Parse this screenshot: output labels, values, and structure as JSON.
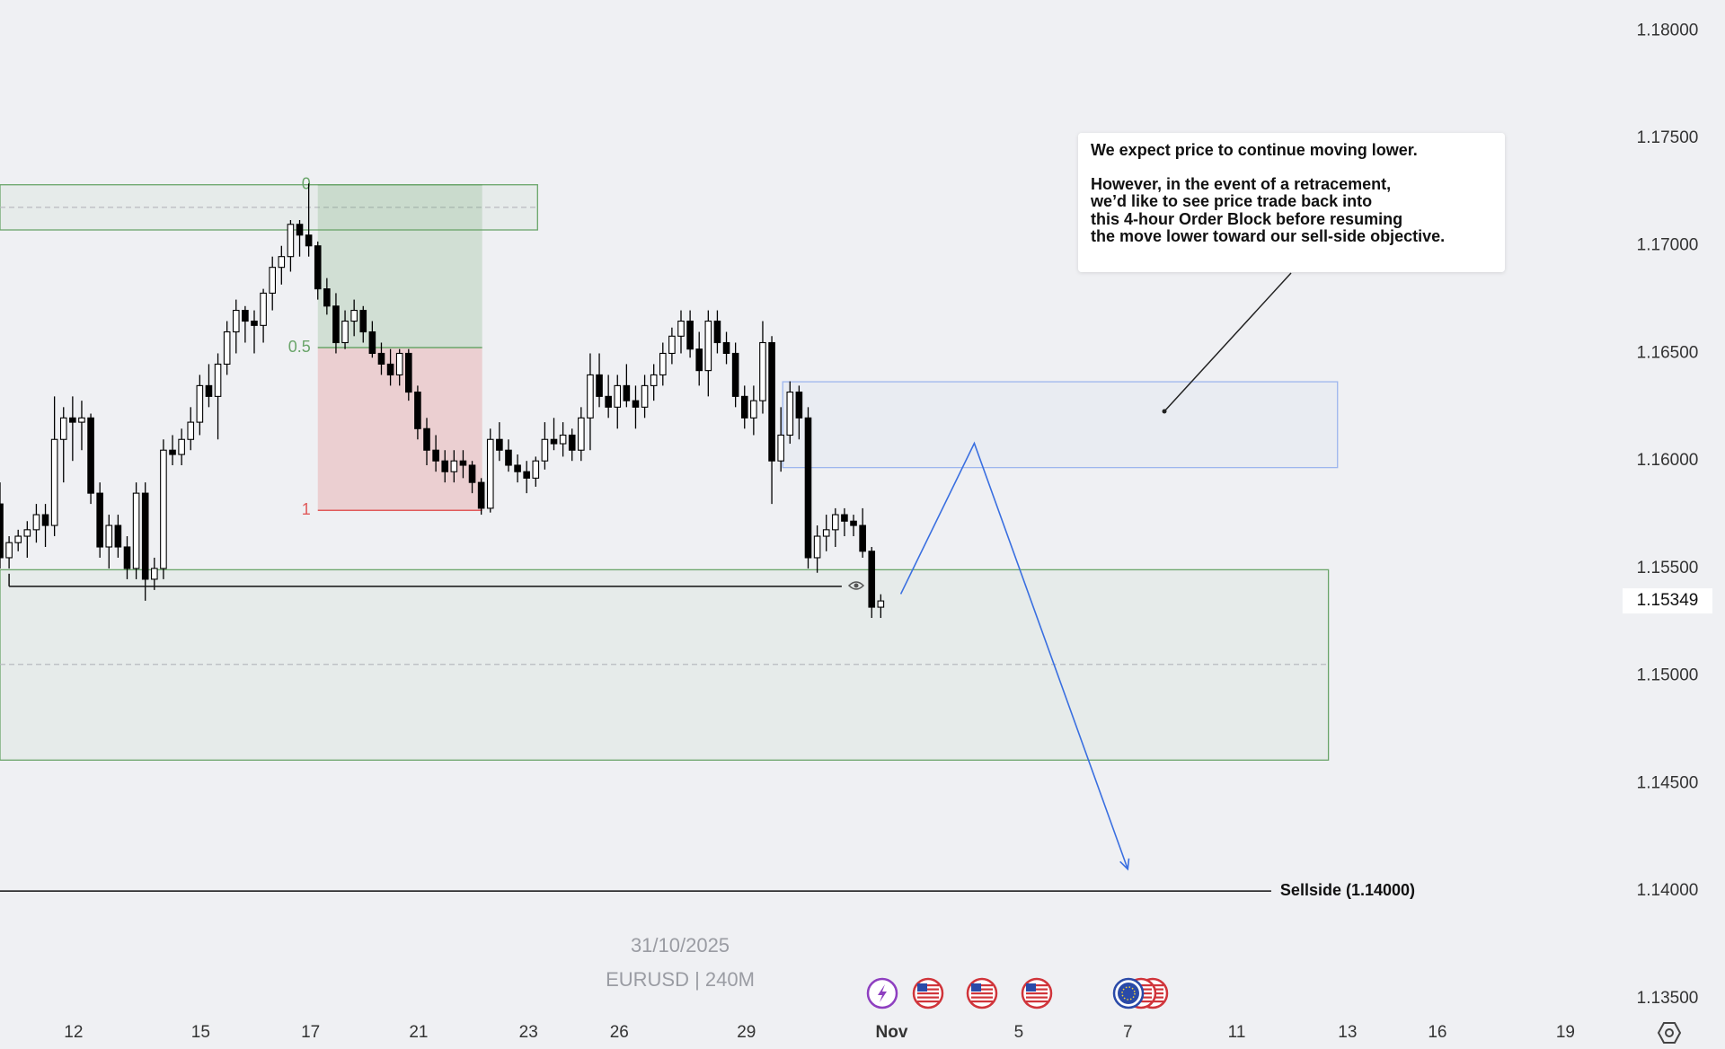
{
  "chart_data": {
    "type": "candlestick",
    "symbol": "EURUSD | 240M",
    "date": "31/10/2025",
    "open": [
      1.158,
      1.1555,
      1.1562,
      1.1565,
      1.1568,
      1.1575,
      1.157,
      1.161,
      1.162,
      1.1618,
      1.162,
      1.1585,
      1.156,
      1.157,
      1.156,
      1.155,
      1.1585,
      1.1545,
      1.155,
      1.1605,
      1.1603,
      1.161,
      1.1618,
      1.1635,
      1.163,
      1.1645,
      1.166,
      1.167,
      1.1665,
      1.1663,
      1.1678,
      1.169,
      1.1695,
      1.171,
      1.1705,
      1.17,
      1.168,
      1.1672,
      1.1655,
      1.1665,
      1.167,
      1.166,
      1.165,
      1.1645,
      1.164,
      1.165,
      1.1632,
      1.1615,
      1.1605,
      1.16,
      1.1595,
      1.16,
      1.1598,
      1.159,
      1.1578,
      1.161,
      1.1605,
      1.1598,
      1.1595,
      1.1592,
      1.16,
      1.161,
      1.1608,
      1.1612,
      1.1605,
      1.162,
      1.164,
      1.163,
      1.1625,
      1.1635,
      1.1628,
      1.1625,
      1.1635,
      1.164,
      1.165,
      1.1658,
      1.1665,
      1.1652,
      1.1642,
      1.1665,
      1.1655,
      1.165,
      1.163,
      1.162,
      1.1628,
      1.1655,
      1.16,
      1.1612,
      1.1632,
      1.162,
      1.1555,
      1.1565,
      1.1568,
      1.1575,
      1.1572,
      1.157,
      1.1558,
      1.1532
    ],
    "high": [
      1.159,
      1.1565,
      1.1568,
      1.1572,
      1.158,
      1.158,
      1.163,
      1.1625,
      1.163,
      1.1628,
      1.1622,
      1.159,
      1.1575,
      1.1575,
      1.1565,
      1.159,
      1.159,
      1.1555,
      1.161,
      1.1612,
      1.1615,
      1.1625,
      1.164,
      1.1645,
      1.165,
      1.1665,
      1.1675,
      1.1672,
      1.167,
      1.168,
      1.1695,
      1.17,
      1.1712,
      1.1712,
      1.1729,
      1.1702,
      1.1685,
      1.1678,
      1.167,
      1.1675,
      1.1672,
      1.1665,
      1.1655,
      1.1652,
      1.1652,
      1.1652,
      1.1635,
      1.162,
      1.1612,
      1.1605,
      1.1605,
      1.1605,
      1.16,
      1.1592,
      1.1615,
      1.1618,
      1.161,
      1.1603,
      1.16,
      1.1602,
      1.1618,
      1.162,
      1.1618,
      1.1615,
      1.1625,
      1.165,
      1.165,
      1.164,
      1.164,
      1.1645,
      1.1635,
      1.164,
      1.1645,
      1.1655,
      1.1662,
      1.167,
      1.167,
      1.166,
      1.167,
      1.167,
      1.166,
      1.1655,
      1.1635,
      1.1635,
      1.1665,
      1.1658,
      1.1625,
      1.1637,
      1.1635,
      1.1625,
      1.157,
      1.1575,
      1.1578,
      1.1578,
      1.1575,
      1.1578,
      1.156,
      1.1538
    ],
    "low": [
      1.155,
      1.155,
      1.1558,
      1.1555,
      1.1562,
      1.156,
      1.1565,
      1.159,
      1.16,
      1.1605,
      1.158,
      1.1555,
      1.155,
      1.1555,
      1.1545,
      1.1545,
      1.1535,
      1.154,
      1.1545,
      1.1598,
      1.1598,
      1.1605,
      1.1612,
      1.1625,
      1.161,
      1.164,
      1.165,
      1.1655,
      1.165,
      1.1655,
      1.167,
      1.1682,
      1.1688,
      1.1695,
      1.1695,
      1.1675,
      1.1668,
      1.165,
      1.1652,
      1.1658,
      1.1655,
      1.1648,
      1.164,
      1.1635,
      1.1635,
      1.1628,
      1.161,
      1.1598,
      1.1595,
      1.159,
      1.159,
      1.1592,
      1.1585,
      1.1575,
      1.1576,
      1.16,
      1.1595,
      1.159,
      1.1585,
      1.1588,
      1.1596,
      1.1605,
      1.1602,
      1.16,
      1.16,
      1.1605,
      1.1625,
      1.162,
      1.1615,
      1.1625,
      1.1615,
      1.162,
      1.1628,
      1.1635,
      1.1645,
      1.165,
      1.1648,
      1.1635,
      1.163,
      1.165,
      1.1645,
      1.1625,
      1.1615,
      1.1612,
      1.1622,
      1.158,
      1.1595,
      1.1608,
      1.161,
      1.155,
      1.1548,
      1.1558,
      1.156,
      1.1565,
      1.1565,
      1.1555,
      1.1527,
      1.1527
    ],
    "close": [
      1.1555,
      1.1562,
      1.1565,
      1.1568,
      1.1575,
      1.157,
      1.161,
      1.162,
      1.1618,
      1.162,
      1.1585,
      1.156,
      1.157,
      1.156,
      1.155,
      1.1585,
      1.1545,
      1.155,
      1.1605,
      1.1603,
      1.161,
      1.1618,
      1.1635,
      1.163,
      1.1645,
      1.166,
      1.167,
      1.1665,
      1.1663,
      1.1678,
      1.169,
      1.1695,
      1.171,
      1.1705,
      1.17,
      1.168,
      1.1672,
      1.1655,
      1.1665,
      1.167,
      1.166,
      1.165,
      1.1645,
      1.164,
      1.165,
      1.1632,
      1.1615,
      1.1605,
      1.16,
      1.1595,
      1.16,
      1.1598,
      1.159,
      1.1578,
      1.161,
      1.1605,
      1.1598,
      1.1595,
      1.1592,
      1.16,
      1.161,
      1.1608,
      1.1612,
      1.1605,
      1.162,
      1.164,
      1.163,
      1.1625,
      1.1635,
      1.1628,
      1.1625,
      1.1635,
      1.164,
      1.165,
      1.1658,
      1.1665,
      1.1652,
      1.1642,
      1.1665,
      1.1655,
      1.165,
      1.163,
      1.162,
      1.1628,
      1.1655,
      1.16,
      1.1612,
      1.1632,
      1.162,
      1.1555,
      1.1565,
      1.1568,
      1.1575,
      1.1572,
      1.157,
      1.1558,
      1.1532,
      1.15349
    ],
    "up_color": "#ffffff",
    "down_color": "#000000",
    "ylim": [
      1.13437,
      1.18143
    ],
    "yticks": [
      {
        "value": 1.18,
        "label": "1.18000"
      },
      {
        "value": 1.175,
        "label": "1.17500"
      },
      {
        "value": 1.17,
        "label": "1.17000"
      },
      {
        "value": 1.165,
        "label": "1.16500"
      },
      {
        "value": 1.16,
        "label": "1.16000"
      },
      {
        "value": 1.155,
        "label": "1.15500"
      },
      {
        "value": 1.15,
        "label": "1.15000"
      },
      {
        "value": 1.145,
        "label": "1.14500"
      },
      {
        "value": 1.14,
        "label": "1.14000"
      },
      {
        "value": 1.135,
        "label": "1.13500"
      }
    ],
    "xlim": [
      0,
      178.1
    ],
    "xticks": [
      {
        "value": 8.1,
        "label": "12"
      },
      {
        "value": 22.1,
        "label": "15"
      },
      {
        "value": 34.2,
        "label": "17"
      },
      {
        "value": 46.1,
        "label": "21"
      },
      {
        "value": 58.2,
        "label": "23"
      },
      {
        "value": 68.2,
        "label": "26"
      },
      {
        "value": 82.2,
        "label": "29"
      },
      {
        "value": 98.2,
        "label": "Nov"
      },
      {
        "value": 112.2,
        "label": "5"
      },
      {
        "value": 124.2,
        "label": "7"
      },
      {
        "value": 136.2,
        "label": "11"
      },
      {
        "value": 148.4,
        "label": "13"
      },
      {
        "value": 158.3,
        "label": "16"
      },
      {
        "value": 172.4,
        "label": "19"
      }
    ],
    "last_price": {
      "value": 1.15349,
      "label": "1.15349"
    },
    "zones": [
      {
        "x": [
          0,
          59.2
        ],
        "y": [
          1.17074,
          1.17284
        ],
        "mid": 1.17179,
        "color": "#6aa56a"
      },
      {
        "x": [
          0,
          146.3
        ],
        "y": [
          1.14609,
          1.15494
        ],
        "mid": 1.15054,
        "color": "#6aa56a"
      },
      {
        "x": [
          86.2,
          147.3
        ],
        "y": [
          1.15969,
          1.16368
        ],
        "color": "#9db6ee"
      }
    ],
    "fib": {
      "x": [
        35,
        53.1
      ],
      "levels": [
        0,
        0.5,
        1
      ],
      "prices": [
        1.17284,
        1.16527,
        1.1577
      ],
      "colors": [
        "#6aa56a",
        "#6aa56a",
        "#e05a5a"
      ]
    },
    "level_line": {
      "x": [
        1,
        92.7
      ],
      "y": 1.15417
    },
    "projection": {
      "x": [
        99.2,
        107.3,
        124.2
      ],
      "y": [
        1.15381,
        1.16082,
        1.14102
      ],
      "color": "#3a6fe0"
    },
    "sellside": {
      "x": [
        0,
        140
      ],
      "y": 1.14,
      "label": "Sellside (1.14000)"
    },
    "note": [
      "We expect price to continue moving lower.",
      "However, in the event of a retracement,",
      "we’d like to see price trade back into",
      "this 4-hour Order Block before resuming",
      "the move lower toward our sell-side objective."
    ]
  }
}
